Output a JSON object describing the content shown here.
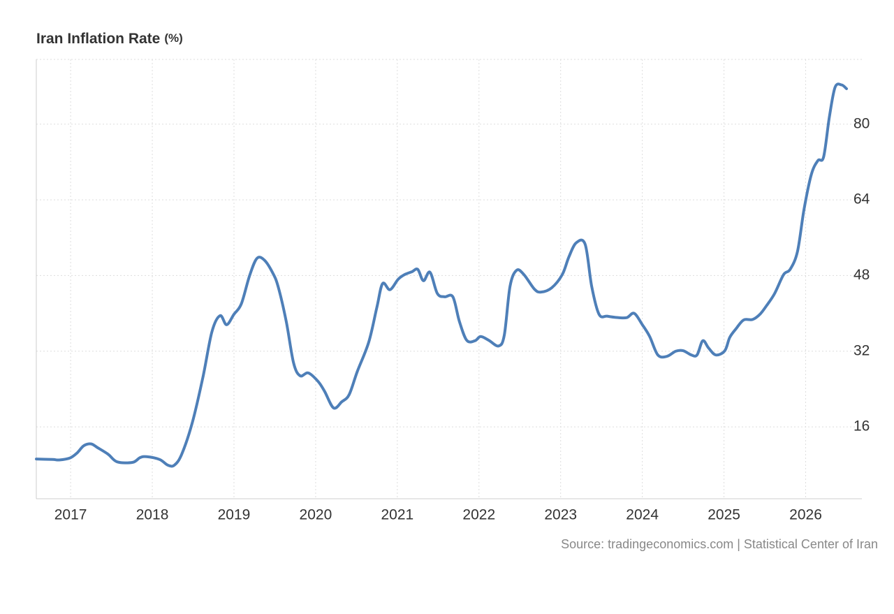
{
  "chart_data": {
    "type": "line",
    "title": "Iran Inflation Rate",
    "unit": "(%)",
    "source": "Source: tradingeconomics.com | Statistical Center of Iran",
    "x": [
      2016.58,
      2016.78,
      2016.86,
      2016.99,
      2017.08,
      2017.16,
      2017.25,
      2017.33,
      2017.46,
      2017.57,
      2017.76,
      2017.85,
      2017.93,
      2018.09,
      2018.19,
      2018.27,
      2018.36,
      2018.49,
      2018.62,
      2018.73,
      2018.83,
      2018.91,
      2019.0,
      2019.09,
      2019.19,
      2019.28,
      2019.37,
      2019.47,
      2019.54,
      2019.64,
      2019.73,
      2019.81,
      2019.91,
      2020.03,
      2020.11,
      2020.22,
      2020.32,
      2020.41,
      2020.51,
      2020.65,
      2020.75,
      2020.82,
      2020.91,
      2021.01,
      2021.09,
      2021.18,
      2021.25,
      2021.32,
      2021.4,
      2021.49,
      2021.58,
      2021.68,
      2021.76,
      2021.85,
      2021.95,
      2022.02,
      2022.12,
      2022.24,
      2022.31,
      2022.38,
      2022.46,
      2022.55,
      2022.68,
      2022.76,
      2022.89,
      2023.02,
      2023.1,
      2023.19,
      2023.3,
      2023.38,
      2023.47,
      2023.57,
      2023.7,
      2023.81,
      2023.9,
      2024.0,
      2024.09,
      2024.19,
      2024.3,
      2024.41,
      2024.5,
      2024.6,
      2024.67,
      2024.74,
      2024.81,
      2024.9,
      2025.01,
      2025.07,
      2025.15,
      2025.24,
      2025.35,
      2025.44,
      2025.52,
      2025.62,
      2025.73,
      2025.81,
      2025.9,
      2025.98,
      2026.07,
      2026.15,
      2026.22,
      2026.29,
      2026.36,
      2026.44,
      2026.5
    ],
    "series": [
      {
        "name": "Iran Inflation Rate",
        "color": "#4e7fb8",
        "values": [
          9.2,
          9.1,
          9.0,
          9.4,
          10.5,
          12.0,
          12.4,
          11.6,
          10.2,
          8.6,
          8.5,
          9.5,
          9.7,
          9.1,
          7.9,
          7.9,
          10.2,
          16.9,
          26.5,
          36.1,
          39.5,
          37.6,
          39.8,
          42.0,
          47.9,
          51.6,
          51.3,
          48.7,
          45.7,
          38.3,
          29.5,
          26.8,
          27.4,
          25.6,
          23.5,
          20.0,
          21.3,
          22.8,
          27.7,
          33.9,
          41.3,
          46.3,
          45.0,
          47.2,
          48.2,
          48.8,
          49.3,
          46.9,
          48.7,
          44.2,
          43.5,
          43.5,
          38.3,
          34.3,
          34.2,
          35.1,
          34.3,
          33.1,
          35.4,
          45.7,
          49.1,
          48.2,
          45.1,
          44.5,
          45.4,
          48.2,
          51.9,
          54.9,
          54.6,
          45.7,
          39.8,
          39.4,
          39.1,
          39.1,
          40.0,
          37.6,
          35.1,
          31.2,
          30.9,
          32.0,
          32.1,
          31.2,
          31.2,
          34.2,
          32.7,
          31.2,
          32.1,
          34.9,
          36.8,
          38.6,
          38.7,
          39.8,
          41.6,
          44.2,
          48.2,
          49.3,
          53.1,
          62.0,
          69.4,
          72.3,
          73.1,
          81.5,
          87.8,
          88.3,
          87.5
        ]
      }
    ],
    "xlim": [
      2016.58,
      2026.5
    ],
    "xticks": [
      2017,
      2018,
      2019,
      2020,
      2021,
      2022,
      2023,
      2024,
      2025,
      2026
    ],
    "ylim": [
      0.8,
      93.7
    ],
    "yticks": [
      16,
      32,
      48,
      64,
      80
    ],
    "grid": true
  }
}
